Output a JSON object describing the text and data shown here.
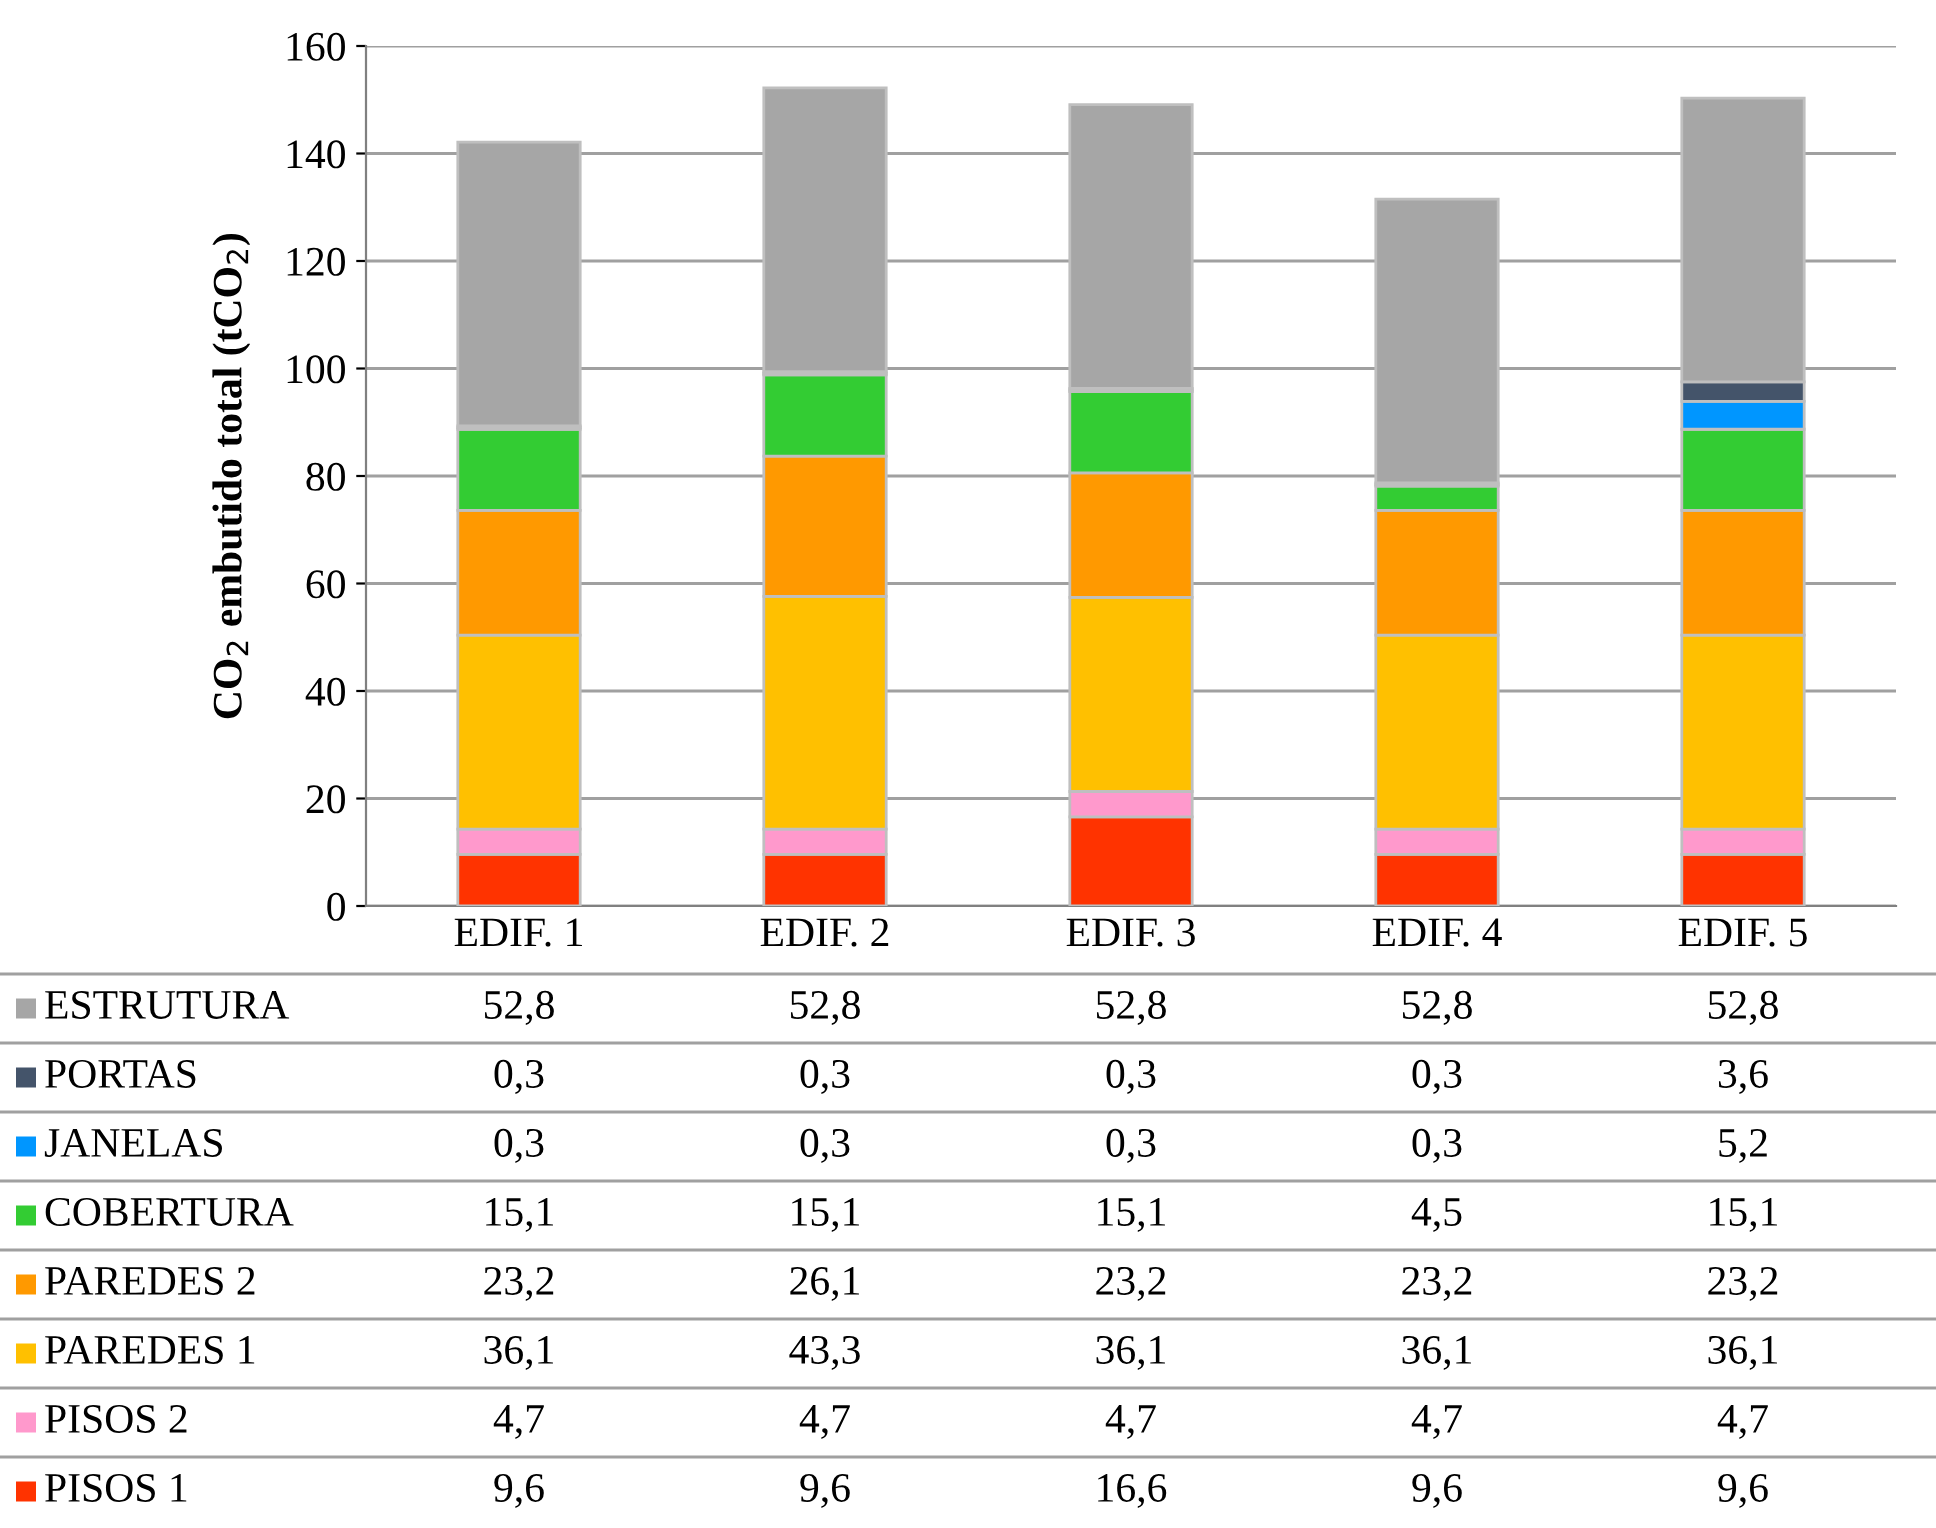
{
  "chart_data": {
    "type": "bar",
    "stacked": true,
    "ylabel": "CO$_{2}$ embutido total (tCO$_{2}$)",
    "categories": [
      "EDIF. 1",
      "EDIF. 2",
      "EDIF. 3",
      "EDIF. 4",
      "EDIF. 5"
    ],
    "series": [
      {
        "name": "PISOS 1",
        "color": "#ff3300",
        "values": [
          9.6,
          9.6,
          16.6,
          9.6,
          9.6
        ],
        "value_labels": [
          "9,6",
          "9,6",
          "16,6",
          "9,6",
          "9,6"
        ]
      },
      {
        "name": "PISOS 2",
        "color": "#ff99cc",
        "values": [
          4.7,
          4.7,
          4.7,
          4.7,
          4.7
        ],
        "value_labels": [
          "4,7",
          "4,7",
          "4,7",
          "4,7",
          "4,7"
        ]
      },
      {
        "name": "PAREDES 1",
        "color": "#ffc000",
        "values": [
          36.1,
          43.3,
          36.1,
          36.1,
          36.1
        ],
        "value_labels": [
          "36,1",
          "43,3",
          "36,1",
          "36,1",
          "36,1"
        ]
      },
      {
        "name": "PAREDES 2",
        "color": "#ff9900",
        "values": [
          23.2,
          26.1,
          23.2,
          23.2,
          23.2
        ],
        "value_labels": [
          "23,2",
          "26,1",
          "23,2",
          "23,2",
          "23,2"
        ]
      },
      {
        "name": "COBERTURA",
        "color": "#33cc33",
        "values": [
          15.1,
          15.1,
          15.1,
          4.5,
          15.1
        ],
        "value_labels": [
          "15,1",
          "15,1",
          "15,1",
          "4,5",
          "15,1"
        ]
      },
      {
        "name": "JANELAS",
        "color": "#0096ff",
        "values": [
          0.3,
          0.3,
          0.3,
          0.3,
          5.2
        ],
        "value_labels": [
          "0,3",
          "0,3",
          "0,3",
          "0,3",
          "5,2"
        ]
      },
      {
        "name": "PORTAS",
        "color": "#44546a",
        "values": [
          0.3,
          0.3,
          0.3,
          0.3,
          3.6
        ],
        "value_labels": [
          "0,3",
          "0,3",
          "0,3",
          "0,3",
          "3,6"
        ]
      },
      {
        "name": "ESTRUTURA",
        "color": "#a6a6a6",
        "values": [
          52.8,
          52.8,
          52.8,
          52.8,
          52.8
        ],
        "value_labels": [
          "52,8",
          "52,8",
          "52,8",
          "52,8",
          "52,8"
        ]
      }
    ],
    "ylim": [
      0,
      160
    ],
    "yticks": [
      0,
      20,
      40,
      60,
      80,
      100,
      120,
      140,
      160
    ],
    "grid": "y",
    "legend": "bottom"
  }
}
